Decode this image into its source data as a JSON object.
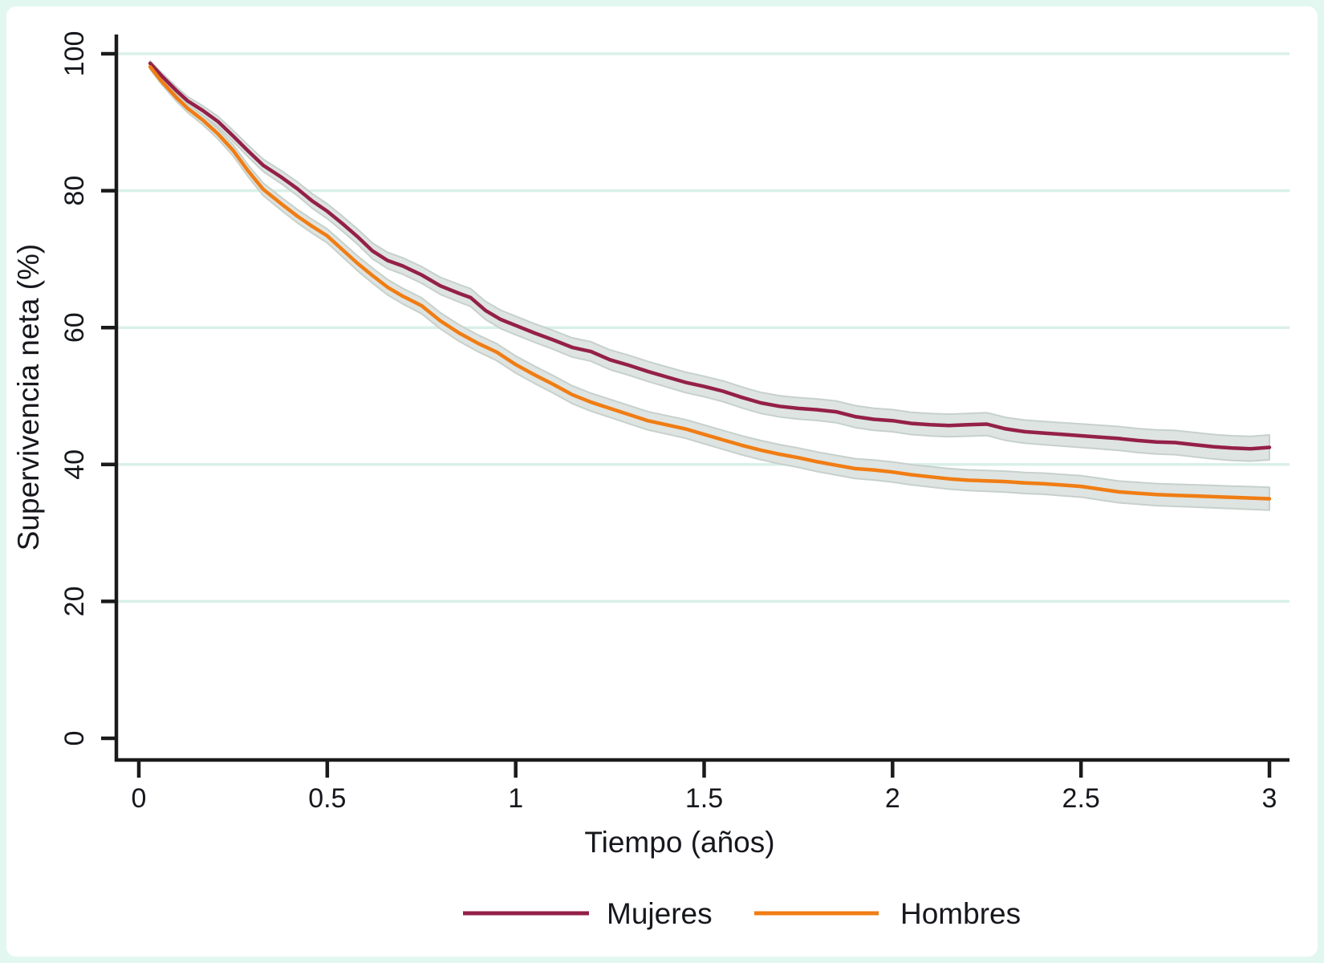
{
  "colors": {
    "figure_border": "#e3f7f1",
    "background": "#ffffff",
    "axis": "#1a1a1a",
    "text": "#16181d",
    "grid": "#d9f0e8",
    "ci_fill": "#dee4e1",
    "ci_edge": "#c7d1cb"
  },
  "chart_data": {
    "type": "line",
    "title": "",
    "xlabel": "Tiempo (años)",
    "ylabel": "Supervivencia neta (%)",
    "x_ticks": [
      0,
      0.5,
      1,
      1.5,
      2,
      2.5,
      3
    ],
    "y_ticks": [
      0,
      20,
      40,
      60,
      80,
      100
    ],
    "xlim": [
      0,
      3.05
    ],
    "ylim": [
      0,
      100
    ],
    "grid": "horizontal-mint-gridlines-at-20-40-60-80-100",
    "legend_position": "bottom-center",
    "note": "Net survival curves with shaded 95% CI bands; points are [years, percent, ci_halfwidth]",
    "series": [
      {
        "name": "Mujeres",
        "color": "#942049",
        "points": [
          [
            0.03,
            98.6,
            0.35
          ],
          [
            0.06,
            96.8,
            0.45
          ],
          [
            0.1,
            94.6,
            0.55
          ],
          [
            0.13,
            93.1,
            0.62
          ],
          [
            0.17,
            91.7,
            0.68
          ],
          [
            0.21,
            90.1,
            0.75
          ],
          [
            0.25,
            88.0,
            0.8
          ],
          [
            0.29,
            85.8,
            0.85
          ],
          [
            0.33,
            83.7,
            0.9
          ],
          [
            0.38,
            81.9,
            0.95
          ],
          [
            0.42,
            80.3,
            1.0
          ],
          [
            0.46,
            78.5,
            1.05
          ],
          [
            0.5,
            77.0,
            1.08
          ],
          [
            0.54,
            75.2,
            1.1
          ],
          [
            0.58,
            73.3,
            1.12
          ],
          [
            0.62,
            71.2,
            1.15
          ],
          [
            0.66,
            69.8,
            1.18
          ],
          [
            0.7,
            69.0,
            1.2
          ],
          [
            0.75,
            67.7,
            1.22
          ],
          [
            0.8,
            66.1,
            1.25
          ],
          [
            0.85,
            65.0,
            1.28
          ],
          [
            0.88,
            64.4,
            1.3
          ],
          [
            0.92,
            62.5,
            1.32
          ],
          [
            0.96,
            61.2,
            1.34
          ],
          [
            1.0,
            60.3,
            1.35
          ],
          [
            1.05,
            59.2,
            1.36
          ],
          [
            1.1,
            58.2,
            1.38
          ],
          [
            1.15,
            57.1,
            1.4
          ],
          [
            1.2,
            56.5,
            1.42
          ],
          [
            1.25,
            55.3,
            1.44
          ],
          [
            1.3,
            54.5,
            1.45
          ],
          [
            1.35,
            53.6,
            1.46
          ],
          [
            1.4,
            52.8,
            1.48
          ],
          [
            1.45,
            52.0,
            1.5
          ],
          [
            1.5,
            51.4,
            1.5
          ],
          [
            1.55,
            50.7,
            1.52
          ],
          [
            1.6,
            49.8,
            1.53
          ],
          [
            1.65,
            49.0,
            1.54
          ],
          [
            1.7,
            48.5,
            1.55
          ],
          [
            1.75,
            48.2,
            1.56
          ],
          [
            1.8,
            48.0,
            1.58
          ],
          [
            1.85,
            47.7,
            1.59
          ],
          [
            1.9,
            47.0,
            1.6
          ],
          [
            1.95,
            46.6,
            1.61
          ],
          [
            2.0,
            46.4,
            1.62
          ],
          [
            2.05,
            46.0,
            1.63
          ],
          [
            2.1,
            45.8,
            1.64
          ],
          [
            2.15,
            45.7,
            1.65
          ],
          [
            2.2,
            45.8,
            1.66
          ],
          [
            2.25,
            45.9,
            1.67
          ],
          [
            2.3,
            45.2,
            1.68
          ],
          [
            2.35,
            44.8,
            1.69
          ],
          [
            2.4,
            44.6,
            1.7
          ],
          [
            2.45,
            44.4,
            1.71
          ],
          [
            2.5,
            44.2,
            1.72
          ],
          [
            2.55,
            44.0,
            1.73
          ],
          [
            2.6,
            43.8,
            1.74
          ],
          [
            2.65,
            43.5,
            1.75
          ],
          [
            2.7,
            43.3,
            1.76
          ],
          [
            2.75,
            43.2,
            1.77
          ],
          [
            2.8,
            42.9,
            1.78
          ],
          [
            2.85,
            42.6,
            1.79
          ],
          [
            2.9,
            42.4,
            1.8
          ],
          [
            2.95,
            42.3,
            1.81
          ],
          [
            3.0,
            42.5,
            1.82
          ]
        ]
      },
      {
        "name": "Hombres",
        "color": "#f07d14",
        "points": [
          [
            0.03,
            98.1,
            0.35
          ],
          [
            0.06,
            96.0,
            0.45
          ],
          [
            0.1,
            93.6,
            0.55
          ],
          [
            0.13,
            92.0,
            0.62
          ],
          [
            0.17,
            90.3,
            0.68
          ],
          [
            0.21,
            88.3,
            0.75
          ],
          [
            0.25,
            85.9,
            0.8
          ],
          [
            0.29,
            82.9,
            0.85
          ],
          [
            0.33,
            80.2,
            0.9
          ],
          [
            0.38,
            78.0,
            0.95
          ],
          [
            0.42,
            76.3,
            0.98
          ],
          [
            0.46,
            74.8,
            1.0
          ],
          [
            0.5,
            73.4,
            1.02
          ],
          [
            0.54,
            71.4,
            1.05
          ],
          [
            0.58,
            69.4,
            1.08
          ],
          [
            0.62,
            67.6,
            1.1
          ],
          [
            0.66,
            65.9,
            1.12
          ],
          [
            0.7,
            64.6,
            1.14
          ],
          [
            0.75,
            63.2,
            1.16
          ],
          [
            0.8,
            61.0,
            1.18
          ],
          [
            0.85,
            59.2,
            1.2
          ],
          [
            0.9,
            57.7,
            1.22
          ],
          [
            0.95,
            56.4,
            1.24
          ],
          [
            1.0,
            54.6,
            1.25
          ],
          [
            1.05,
            53.1,
            1.26
          ],
          [
            1.1,
            51.7,
            1.28
          ],
          [
            1.15,
            50.2,
            1.3
          ],
          [
            1.2,
            49.1,
            1.31
          ],
          [
            1.25,
            48.2,
            1.32
          ],
          [
            1.3,
            47.3,
            1.33
          ],
          [
            1.35,
            46.4,
            1.34
          ],
          [
            1.4,
            45.8,
            1.35
          ],
          [
            1.45,
            45.2,
            1.36
          ],
          [
            1.5,
            44.4,
            1.37
          ],
          [
            1.55,
            43.6,
            1.38
          ],
          [
            1.6,
            42.8,
            1.39
          ],
          [
            1.65,
            42.1,
            1.4
          ],
          [
            1.7,
            41.5,
            1.41
          ],
          [
            1.75,
            41.0,
            1.42
          ],
          [
            1.8,
            40.4,
            1.43
          ],
          [
            1.85,
            39.9,
            1.44
          ],
          [
            1.9,
            39.4,
            1.45
          ],
          [
            1.95,
            39.2,
            1.46
          ],
          [
            2.0,
            38.9,
            1.47
          ],
          [
            2.05,
            38.5,
            1.48
          ],
          [
            2.1,
            38.2,
            1.49
          ],
          [
            2.15,
            37.9,
            1.5
          ],
          [
            2.2,
            37.7,
            1.51
          ],
          [
            2.25,
            37.6,
            1.52
          ],
          [
            2.3,
            37.5,
            1.53
          ],
          [
            2.35,
            37.3,
            1.54
          ],
          [
            2.4,
            37.2,
            1.55
          ],
          [
            2.45,
            37.0,
            1.56
          ],
          [
            2.5,
            36.8,
            1.57
          ],
          [
            2.55,
            36.4,
            1.58
          ],
          [
            2.6,
            36.0,
            1.59
          ],
          [
            2.65,
            35.8,
            1.6
          ],
          [
            2.7,
            35.6,
            1.61
          ],
          [
            2.75,
            35.5,
            1.62
          ],
          [
            2.8,
            35.4,
            1.63
          ],
          [
            2.85,
            35.3,
            1.64
          ],
          [
            2.9,
            35.2,
            1.65
          ],
          [
            2.95,
            35.1,
            1.66
          ],
          [
            3.0,
            35.0,
            1.67
          ]
        ]
      }
    ]
  }
}
